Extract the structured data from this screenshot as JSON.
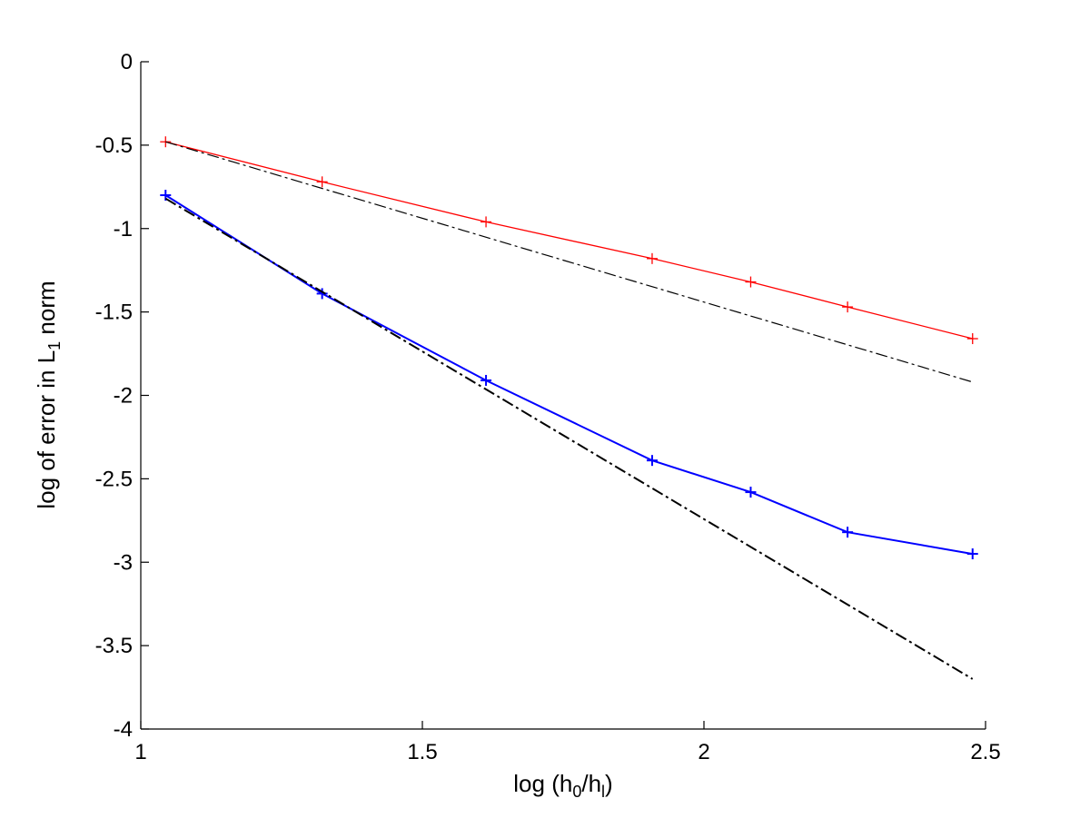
{
  "chart_data": {
    "type": "line",
    "title": "",
    "xlabel": {
      "base": "log (h",
      "sub1": "0",
      "mid": "/h",
      "sub2": "l",
      "end": ")"
    },
    "ylabel": {
      "base": "log of error in L",
      "sub": "1",
      "end": " norm"
    },
    "xlim": [
      1,
      2.5
    ],
    "ylim": [
      -4,
      0
    ],
    "xticks": [
      1,
      1.5,
      2,
      2.5
    ],
    "xtick_labels": [
      "1",
      "1.5",
      "2",
      "2.5"
    ],
    "yticks": [
      0,
      -0.5,
      -1,
      -1.5,
      -2,
      -2.5,
      -3,
      -3.5,
      -4
    ],
    "ytick_labels": [
      "0",
      "-0.5",
      "-1",
      "-1.5",
      "-2",
      "-2.5",
      "-3",
      "-3.5",
      "-4"
    ],
    "grid": false,
    "series": [
      {
        "color": "#ff0000",
        "style": "solid-plus",
        "x": [
          1.044,
          1.322,
          1.613,
          1.908,
          2.083,
          2.255,
          2.477
        ],
        "y": [
          -0.48,
          -0.72,
          -0.96,
          -1.18,
          -1.32,
          -1.47,
          -1.66
        ]
      },
      {
        "color": "#0000ff",
        "style": "solid-plus",
        "x": [
          1.044,
          1.322,
          1.613,
          1.908,
          2.083,
          2.255,
          2.477
        ],
        "y": [
          -0.8,
          -1.39,
          -1.91,
          -2.39,
          -2.58,
          -2.82,
          -2.95
        ]
      },
      {
        "color": "#000000",
        "style": "dashdot",
        "x": [
          1.044,
          2.477
        ],
        "y": [
          -0.48,
          -1.92
        ]
      },
      {
        "color": "#000000",
        "style": "dashdot",
        "x": [
          1.044,
          2.477
        ],
        "y": [
          -0.82,
          -3.7
        ]
      }
    ]
  }
}
